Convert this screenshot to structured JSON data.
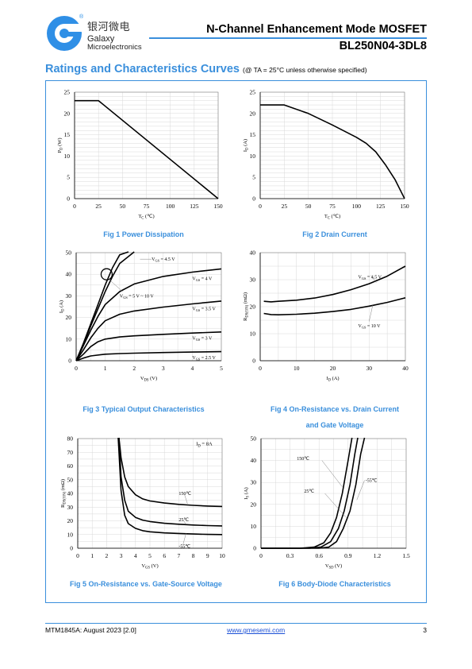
{
  "header": {
    "logo_cn": "银河微电",
    "logo_en1": "Galaxy",
    "logo_en2": "Microelectronics",
    "title": "N-Channel Enhancement Mode MOSFET",
    "part": "BL250N04-3DL8"
  },
  "section": {
    "title": "Ratings and Characteristics Curves",
    "condition": "(@ TA = 25°C unless otherwise specified)"
  },
  "colors": {
    "accent": "#3a8fdc",
    "grid": "#d8d8d8",
    "curve": "#000000"
  },
  "chart_data": [
    {
      "id": "fig1",
      "type": "line",
      "caption": "Fig 1    Power Dissipation",
      "xlabel": "TC (℃)",
      "ylabel": "PD (W)",
      "xlim": [
        0,
        150
      ],
      "ylim": [
        0,
        25
      ],
      "xticks": [
        0,
        25,
        50,
        75,
        100,
        125,
        150
      ],
      "yticks": [
        0,
        5,
        10,
        15,
        20,
        25
      ],
      "grid": true,
      "series": [
        {
          "x": [
            0,
            25,
            150
          ],
          "y": [
            23,
            23,
            0
          ]
        }
      ]
    },
    {
      "id": "fig2",
      "type": "line",
      "caption": "Fig 2    Drain Current",
      "xlabel": "TC (℃)",
      "ylabel": "ID (A)",
      "xlim": [
        0,
        150
      ],
      "ylim": [
        0,
        25
      ],
      "xticks": [
        0,
        25,
        50,
        75,
        100,
        125,
        150
      ],
      "yticks": [
        0,
        5,
        10,
        15,
        20,
        25
      ],
      "grid": true,
      "series": [
        {
          "x": [
            0,
            25,
            50,
            75,
            100,
            110,
            120,
            130,
            140,
            150
          ],
          "y": [
            22,
            22,
            20,
            17.3,
            14.4,
            13,
            11,
            8,
            4.5,
            0
          ]
        }
      ]
    },
    {
      "id": "fig3",
      "type": "line",
      "caption": "Fig 3    Typical Output Characteristics",
      "xlabel": "VDS (V)",
      "ylabel": "ID (A)",
      "xlim": [
        0,
        5
      ],
      "ylim": [
        0,
        50
      ],
      "xticks": [
        0,
        1,
        2,
        3,
        4,
        5
      ],
      "yticks": [
        0,
        10,
        20,
        30,
        40,
        50
      ],
      "grid": true,
      "series": [
        {
          "name": "VGS = 5 V ~ 10 V",
          "x": [
            0,
            0.25,
            0.5,
            0.75,
            1.0,
            1.25,
            1.5,
            1.8
          ],
          "y": [
            0,
            8,
            17,
            26,
            35,
            43,
            49,
            55
          ]
        },
        {
          "name": "VGS = 4.5 V",
          "x": [
            0,
            0.25,
            0.5,
            0.75,
            1.0,
            1.25,
            1.5,
            2.0
          ],
          "y": [
            0,
            7.5,
            16,
            24,
            32,
            39,
            45,
            53
          ]
        },
        {
          "name": "VGS = 4 V",
          "x": [
            0,
            0.25,
            0.5,
            0.75,
            1.0,
            1.5,
            2.0,
            3.0,
            4.0,
            5.0
          ],
          "y": [
            0,
            7,
            14,
            20.5,
            26,
            32,
            35.5,
            39,
            41,
            42.5
          ]
        },
        {
          "name": "VGS = 3.5 V",
          "x": [
            0,
            0.25,
            0.5,
            0.75,
            1.0,
            1.5,
            2.0,
            3.0,
            4.0,
            5.0
          ],
          "y": [
            0,
            5,
            10.5,
            15,
            18.5,
            21.5,
            23,
            24.8,
            26.3,
            27.6
          ]
        },
        {
          "name": "VGS = 3 V",
          "x": [
            0,
            0.25,
            0.5,
            0.75,
            1.0,
            1.5,
            2.0,
            3.0,
            4.0,
            5.0
          ],
          "y": [
            0,
            3,
            6.5,
            8.8,
            10,
            11,
            11.5,
            12.2,
            12.8,
            13.3
          ]
        },
        {
          "name": "VGS = 2.5 V",
          "x": [
            0,
            0.25,
            0.5,
            1.0,
            1.5,
            2.0,
            3.0,
            4.0,
            5.0
          ],
          "y": [
            0,
            1.2,
            2.2,
            3,
            3.3,
            3.5,
            3.8,
            4.0,
            4.2
          ]
        }
      ]
    },
    {
      "id": "fig4",
      "type": "line",
      "caption": "Fig 4    On-Resistance vs. Drain Current",
      "caption2": "and Gate Voltage",
      "xlabel": "ID (A)",
      "ylabel": "RDS(ON) (mΩ)",
      "xlim": [
        0,
        40
      ],
      "ylim": [
        0,
        40
      ],
      "xticks": [
        0,
        10,
        20,
        30,
        40
      ],
      "yticks": [
        0,
        10,
        20,
        30,
        40
      ],
      "grid": true,
      "series": [
        {
          "name": "VGS = 4.5 V",
          "x": [
            1,
            3,
            5,
            10,
            15,
            20,
            25,
            30,
            35,
            40
          ],
          "y": [
            22,
            21.8,
            22,
            22.4,
            23.2,
            24.5,
            26.3,
            28.5,
            31.3,
            35
          ]
        },
        {
          "name": "VGS = 10 V",
          "x": [
            1,
            3,
            5,
            10,
            15,
            20,
            25,
            30,
            35,
            40
          ],
          "y": [
            17.5,
            17.1,
            17,
            17.2,
            17.6,
            18.2,
            19,
            20.2,
            21.6,
            23.3
          ]
        }
      ]
    },
    {
      "id": "fig5",
      "type": "line",
      "caption": "Fig 5    On-Resistance vs. Gate-Source Voltage",
      "xlabel": "VGS (V)",
      "ylabel": "RDS(ON) (mΩ)",
      "xlim": [
        0,
        10
      ],
      "ylim": [
        0,
        80
      ],
      "xticks": [
        0,
        1,
        2,
        3,
        4,
        5,
        6,
        7,
        8,
        9,
        10
      ],
      "yticks": [
        0,
        10,
        20,
        30,
        40,
        50,
        60,
        70,
        80
      ],
      "grid": true,
      "annotation": "ID = 8A",
      "series": [
        {
          "name": "150℃",
          "x": [
            2.85,
            3,
            3.25,
            3.5,
            4,
            4.5,
            5,
            6,
            7,
            8,
            9,
            10
          ],
          "y": [
            82,
            66,
            52,
            45,
            39,
            36,
            34.5,
            33,
            32,
            31.3,
            30.8,
            30.5
          ]
        },
        {
          "name": "25℃",
          "x": [
            2.85,
            3,
            3.25,
            3.5,
            4,
            4.5,
            5,
            6,
            7,
            8,
            9,
            10
          ],
          "y": [
            82,
            52,
            35,
            27,
            22.5,
            20.5,
            19.5,
            18.2,
            17.5,
            16.9,
            16.5,
            16.3
          ]
        },
        {
          "name": "-55℃",
          "x": [
            2.8,
            3,
            3.25,
            3.5,
            4,
            4.5,
            5,
            6,
            7,
            8,
            9,
            10
          ],
          "y": [
            82,
            42,
            24,
            18,
            14.5,
            12.8,
            12,
            11.2,
            10.8,
            10.4,
            10.1,
            10
          ]
        }
      ]
    },
    {
      "id": "fig6",
      "type": "line",
      "caption": "Fig 6    Body-Diode Characteristics",
      "xlabel": "VSD (V)",
      "ylabel": "IS (A)",
      "xlim": [
        0,
        1.5
      ],
      "ylim": [
        0,
        50
      ],
      "xticks": [
        "0",
        "0.3",
        "0.6",
        "0.9",
        "1.2",
        "1.5"
      ],
      "yticks": [
        0,
        10,
        20,
        30,
        40,
        50
      ],
      "grid": true,
      "series": [
        {
          "name": "150℃",
          "x": [
            0,
            0.4,
            0.55,
            0.65,
            0.72,
            0.78,
            0.84,
            0.9,
            0.94
          ],
          "y": [
            0,
            0,
            0.5,
            2.5,
            7,
            14,
            25,
            40,
            52
          ]
        },
        {
          "name": "25℃",
          "x": [
            0,
            0.5,
            0.62,
            0.72,
            0.8,
            0.86,
            0.92,
            0.97,
            1.0
          ],
          "y": [
            0,
            0,
            0.5,
            3,
            9,
            17,
            29,
            43,
            52
          ]
        },
        {
          "name": "-55℃",
          "x": [
            0,
            0.6,
            0.7,
            0.78,
            0.85,
            0.92,
            0.98,
            1.03,
            1.07
          ],
          "y": [
            0,
            0,
            0.5,
            3,
            9,
            17,
            29,
            43,
            52
          ]
        }
      ]
    }
  ],
  "footer": {
    "doc": "MTM1845A: August 2023 [2.0]",
    "url": "www.gmesemi.com",
    "page": "3"
  }
}
